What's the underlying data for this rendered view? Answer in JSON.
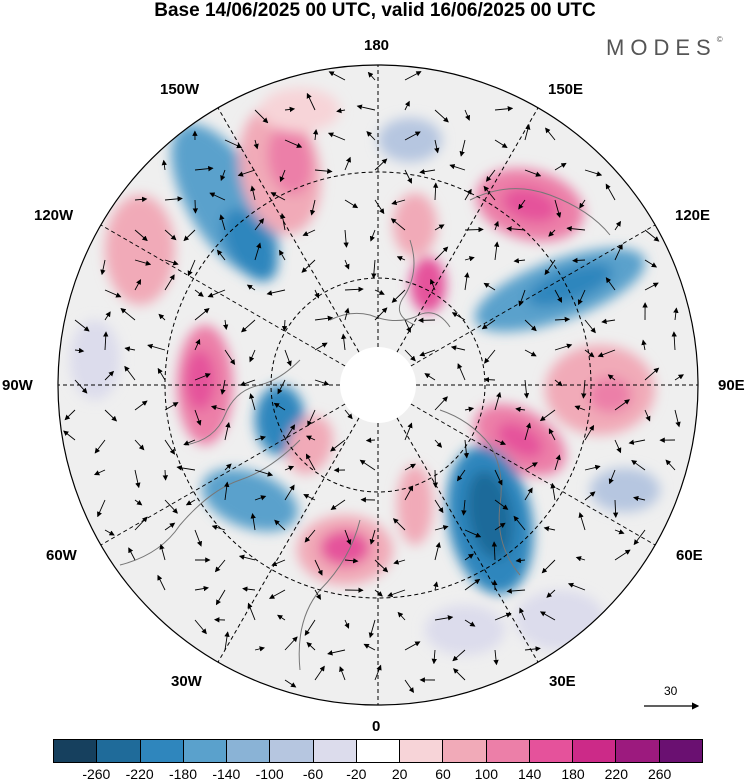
{
  "title": "Base 14/06/2025 00 UTC, valid 16/06/2025 00 UTC",
  "brand": {
    "name": "MODES",
    "mark": "©"
  },
  "map": {
    "projection": "north-polar-stereographic",
    "longitude_labels": {
      "top": "180",
      "bottom": "0",
      "left": "90W",
      "right": "90E",
      "upper_left_1": "150W",
      "upper_left_2": "120W",
      "upper_right_1": "150E",
      "upper_right_2": "120E",
      "lower_left_1": "60W",
      "lower_left_2": "30W",
      "lower_right_1": "60E",
      "lower_right_2": "30E"
    },
    "graticule": "dashed",
    "vectors": "wind-vectors",
    "reference_vector": {
      "value": "30"
    }
  },
  "colorbar": {
    "colors": [
      "#16405e",
      "#1f6b9a",
      "#2f86bd",
      "#5aa1cc",
      "#8ab3d6",
      "#b6c6e0",
      "#dcdcec",
      "#ffffff",
      "#f7d4d8",
      "#f1aab8",
      "#ec7fa8",
      "#e5529b",
      "#cc2a88",
      "#9c1a7e",
      "#6a1071"
    ],
    "ticks": [
      "-260",
      "-220",
      "-180",
      "-140",
      "-100",
      "-60",
      "-20",
      "20",
      "60",
      "100",
      "140",
      "180",
      "220",
      "260"
    ]
  }
}
